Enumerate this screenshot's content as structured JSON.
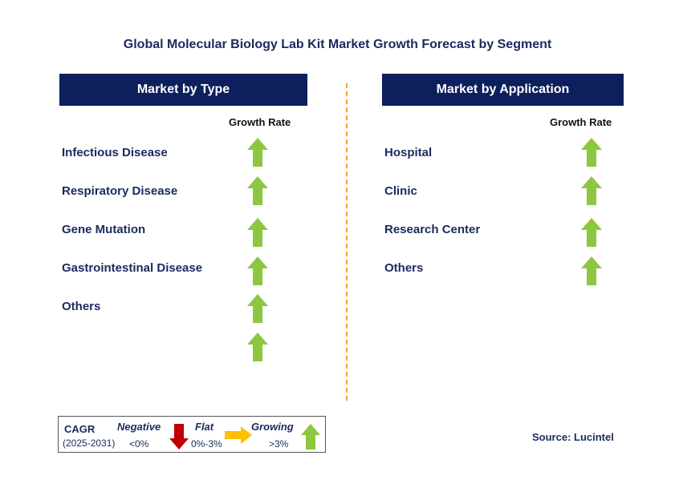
{
  "title": "Global Molecular Biology Lab Kit Market Growth Forecast by Segment",
  "left_panel": {
    "header": "Market by Type",
    "growth_rate_label": "Growth Rate",
    "segments": [
      {
        "label": "Infectious Disease",
        "trend": "growing"
      },
      {
        "label": "Respiratory Disease",
        "trend": "growing"
      },
      {
        "label": "Gene Mutation",
        "trend": "growing"
      },
      {
        "label": "Gastrointestinal Disease",
        "trend": "growing"
      },
      {
        "label": "Others",
        "trend": "growing"
      },
      {
        "label": "",
        "trend": "growing"
      }
    ]
  },
  "right_panel": {
    "header": "Market by Application",
    "growth_rate_label": "Growth Rate",
    "segments": [
      {
        "label": "Hospital",
        "trend": "growing"
      },
      {
        "label": "Clinic",
        "trend": "growing"
      },
      {
        "label": "Research Center",
        "trend": "growing"
      },
      {
        "label": "Others",
        "trend": "growing"
      }
    ]
  },
  "legend": {
    "cagr_label": "CAGR",
    "period": "(2025-2031)",
    "negative_label": "Negative",
    "negative_range": "<0%",
    "flat_label": "Flat",
    "flat_range": "0%-3%",
    "growing_label": "Growing",
    "growing_range": ">3%"
  },
  "source": "Source: Lucintel",
  "colors": {
    "header_bg": "#0d1f5c",
    "growing": "#8dc63f",
    "negative": "#c00000",
    "flat": "#ffc000",
    "divider": "#f4a52a"
  }
}
